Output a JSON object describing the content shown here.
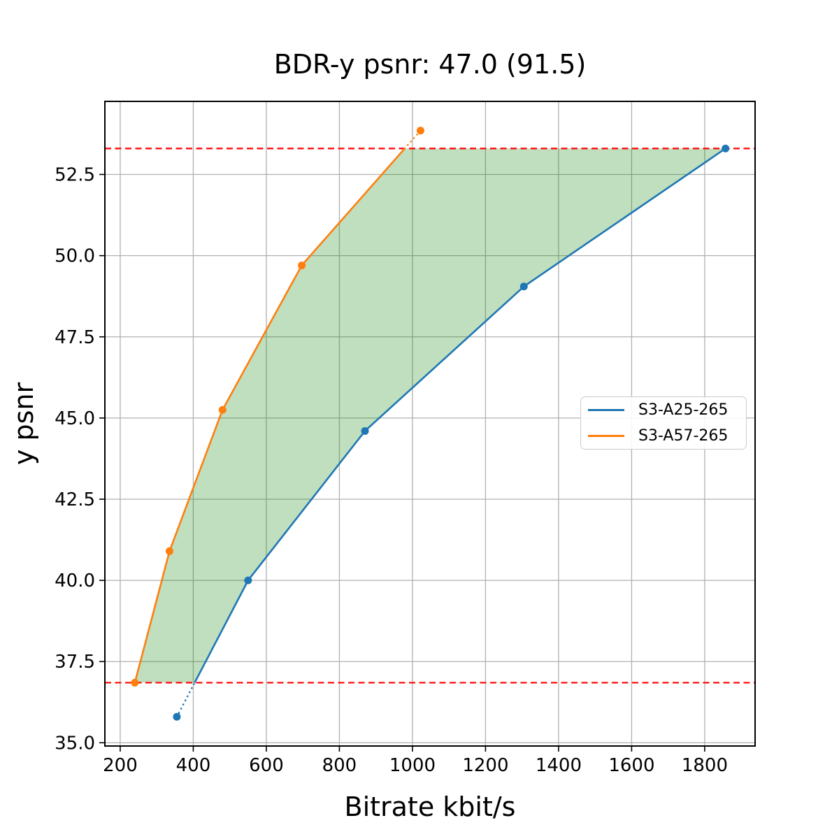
{
  "chart_data": {
    "type": "line",
    "title": "BDR-y psnr: 47.0 (91.5)",
    "xlabel": "Bitrate kbit/s",
    "ylabel": "y psnr",
    "xlim": [
      158,
      1938
    ],
    "ylim": [
      34.9,
      54.75
    ],
    "x_ticks": [
      200,
      400,
      600,
      800,
      1000,
      1200,
      1400,
      1600,
      1800
    ],
    "x_tick_labels": [
      "200",
      "400",
      "600",
      "800",
      "1000",
      "1200",
      "1400",
      "1600",
      "1800"
    ],
    "y_ticks": [
      35.0,
      37.5,
      40.0,
      42.5,
      45.0,
      47.5,
      50.0,
      52.5
    ],
    "y_tick_labels": [
      "35.0",
      "37.5",
      "40.0",
      "42.5",
      "45.0",
      "47.5",
      "50.0",
      "52.5"
    ],
    "grid": true,
    "grid_color": "#b0b0b0",
    "series": [
      {
        "name": "S3-A25-265",
        "color": "#1f77b4",
        "x": [
          355,
          550,
          870,
          1305,
          1857
        ],
        "y": [
          35.8,
          40.0,
          44.6,
          49.05,
          53.3
        ]
      },
      {
        "name": "S3-A57-265",
        "color": "#ff7f0e",
        "x": [
          240,
          335,
          480,
          697,
          1022
        ],
        "y": [
          36.85,
          40.9,
          45.25,
          49.7,
          53.85
        ]
      }
    ],
    "limit_lines": {
      "color": "#ff0000",
      "style": "dashed",
      "values": [
        36.85,
        53.3
      ]
    },
    "overlap_band": {
      "fill": "#008000",
      "opacity": 0.25
    },
    "legend": {
      "location": "center right"
    }
  }
}
